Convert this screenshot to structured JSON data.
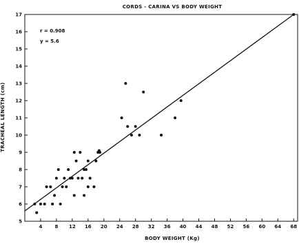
{
  "chart_data": {
    "type": "scatter",
    "title": "CORDS - CARINA VS BODY WEIGHT",
    "xlabel": "BODY WEIGHT (Kg)",
    "ylabel": "TRACHEAL LENGTH (cm)",
    "xlim": [
      0,
      69
    ],
    "ylim": [
      5,
      17
    ],
    "xticks": [
      4,
      8,
      12,
      16,
      20,
      24,
      28,
      32,
      36,
      40,
      44,
      48,
      52,
      56,
      60,
      64,
      68
    ],
    "yticks": [
      5,
      6,
      7,
      8,
      9,
      10,
      11,
      12,
      13,
      14,
      15,
      16,
      17
    ],
    "grid": false,
    "annotations": {
      "r": "r = 0.908",
      "y": "y = 5.6"
    },
    "regression_line": {
      "x": [
        0,
        68
      ],
      "y": [
        5.6,
        17.0
      ]
    },
    "points": [
      {
        "x": 2.5,
        "y": 6.0
      },
      {
        "x": 3.0,
        "y": 5.5
      },
      {
        "x": 4.0,
        "y": 6.0
      },
      {
        "x": 5.0,
        "y": 6.0
      },
      {
        "x": 5.5,
        "y": 7.0
      },
      {
        "x": 6.5,
        "y": 7.0
      },
      {
        "x": 7.0,
        "y": 6.0
      },
      {
        "x": 7.5,
        "y": 6.5
      },
      {
        "x": 8.0,
        "y": 7.5
      },
      {
        "x": 8.5,
        "y": 8.0
      },
      {
        "x": 9.0,
        "y": 6.0
      },
      {
        "x": 9.5,
        "y": 7.0
      },
      {
        "x": 10.0,
        "y": 7.5
      },
      {
        "x": 10.5,
        "y": 7.0
      },
      {
        "x": 11.0,
        "y": 8.0
      },
      {
        "x": 11.5,
        "y": 7.5
      },
      {
        "x": 12.0,
        "y": 7.5
      },
      {
        "x": 12.5,
        "y": 9.0
      },
      {
        "x": 12.5,
        "y": 6.5
      },
      {
        "x": 13.0,
        "y": 8.5
      },
      {
        "x": 13.5,
        "y": 7.5
      },
      {
        "x": 14.0,
        "y": 9.0
      },
      {
        "x": 14.5,
        "y": 7.5
      },
      {
        "x": 15.0,
        "y": 8.0
      },
      {
        "x": 15.0,
        "y": 6.5
      },
      {
        "x": 15.5,
        "y": 8.0
      },
      {
        "x": 16.0,
        "y": 7.0
      },
      {
        "x": 16.0,
        "y": 8.5
      },
      {
        "x": 16.5,
        "y": 7.5
      },
      {
        "x": 17.5,
        "y": 7.0
      },
      {
        "x": 18.0,
        "y": 8.5
      },
      {
        "x": 18.5,
        "y": 9.0
      },
      {
        "x": 18.8,
        "y": 9.1
      },
      {
        "x": 19.0,
        "y": 9.0
      },
      {
        "x": 24.5,
        "y": 11.0
      },
      {
        "x": 25.5,
        "y": 13.0
      },
      {
        "x": 26.0,
        "y": 10.5
      },
      {
        "x": 27.0,
        "y": 10.0
      },
      {
        "x": 28.0,
        "y": 10.5
      },
      {
        "x": 29.0,
        "y": 10.0
      },
      {
        "x": 30.0,
        "y": 12.5
      },
      {
        "x": 34.5,
        "y": 10.0
      },
      {
        "x": 38.0,
        "y": 11.0
      },
      {
        "x": 39.5,
        "y": 12.0
      },
      {
        "x": 68.0,
        "y": 17.0
      }
    ]
  }
}
